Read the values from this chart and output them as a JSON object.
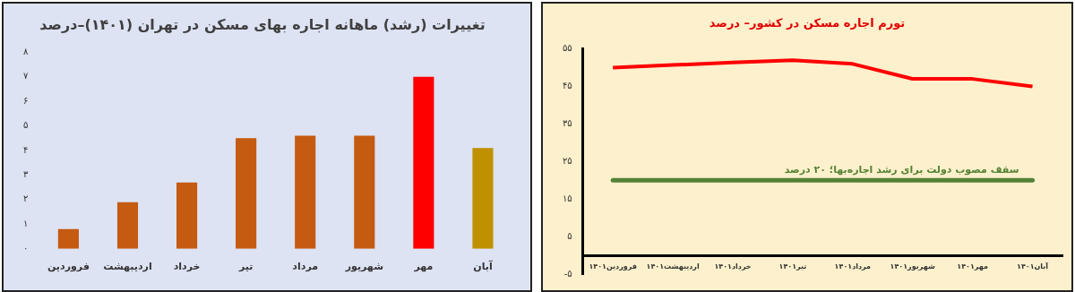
{
  "chart_data": [
    {
      "type": "bar",
      "title": "تغییرات (رشد) ماهانه اجاره بهای مسکن در تهران (۱۴۰۱)–درصد",
      "categories": [
        "فروردین",
        "اردیبهشت",
        "خرداد",
        "تیر",
        "مرداد",
        "شهریور",
        "مهر",
        "آبان"
      ],
      "values": [
        0.8,
        1.9,
        2.7,
        4.5,
        4.6,
        4.6,
        7,
        4.1
      ],
      "colors": [
        "#c55a11",
        "#c55a11",
        "#c55a11",
        "#c55a11",
        "#c55a11",
        "#c55a11",
        "#ff0000",
        "#bf9000"
      ],
      "ylim": [
        0,
        8
      ],
      "yticks": [
        {
          "value": 0,
          "label": "۰"
        },
        {
          "value": 1,
          "label": "۱"
        },
        {
          "value": 2,
          "label": "۲"
        },
        {
          "value": 3,
          "label": "۳"
        },
        {
          "value": 4,
          "label": "۴"
        },
        {
          "value": 5,
          "label": "۵"
        },
        {
          "value": 6,
          "label": "۶"
        },
        {
          "value": 7,
          "label": "۷"
        },
        {
          "value": 8,
          "label": "۸"
        }
      ]
    },
    {
      "type": "line",
      "title": "تورم اجاره مسکن در کشور– درصد",
      "categories": [
        "فروردین۱۴۰۱",
        "اردیبهشت۱۴۰۱",
        "خرداد۱۴۰۱",
        "تیر۱۴۰۱",
        "مرداد۱۴۰۱",
        "شهریور۱۴۰۱",
        "مهر۱۴۰۱",
        "آبان۱۴۰۱"
      ],
      "series": [
        {
          "color": "#ff0000",
          "values": [
            50,
            50.7,
            51.4,
            52,
            51,
            47,
            47,
            45
          ]
        }
      ],
      "ylim": [
        -5,
        55
      ],
      "yticks": [
        {
          "value": -5,
          "label": "-۵"
        },
        {
          "value": 5,
          "label": "۵"
        },
        {
          "value": 15,
          "label": "۱۵"
        },
        {
          "value": 25,
          "label": "۲۵"
        },
        {
          "value": 35,
          "label": "۳۵"
        },
        {
          "value": 45,
          "label": "۴۵"
        },
        {
          "value": 55,
          "label": "۵۵"
        }
      ],
      "ref_lines": [
        {
          "axis": "y",
          "value": 20,
          "label": "سقف مصوب دولت برای رشد اجاره‌بها؛ ۲۰ درصد",
          "color": "#548235"
        }
      ]
    }
  ]
}
